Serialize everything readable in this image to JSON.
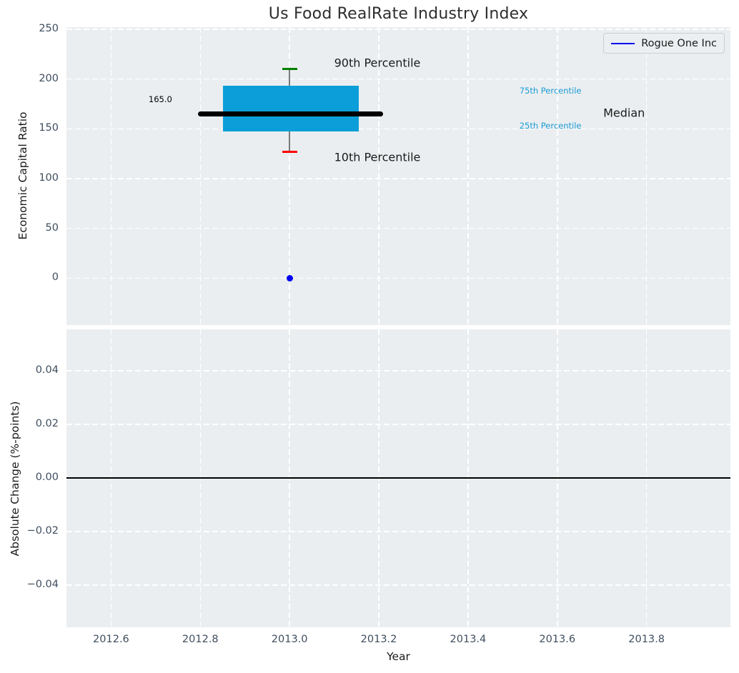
{
  "title": "Us Food RealRate Industry Index",
  "xlabel": "Year",
  "legend": {
    "label": "Rogue One Inc",
    "line_color": "#0000ee",
    "location": "upper right"
  },
  "colors": {
    "plot_background": "#ebeef0",
    "grid": "#ffffff",
    "box_fill": "#0b9ed9",
    "median_line": "#000000",
    "p90_cap": "#008000",
    "p10_cap": "#ff0000",
    "whisker": "#7a7a7a",
    "point": "#0000ee",
    "tick_label": "#3f4e5f",
    "percentile_label": "#1b9cd4",
    "zero_line": "#000000"
  },
  "xticks": {
    "values": [
      2012.6,
      2012.8,
      2013.0,
      2013.2,
      2013.4,
      2013.6,
      2013.8
    ],
    "labels": [
      "2012.6",
      "2012.8",
      "2013.0",
      "2013.2",
      "2013.4",
      "2013.6",
      "2013.8"
    ]
  },
  "chart_data": [
    {
      "type": "boxplot",
      "title": "Us Food RealRate Industry Index",
      "ylabel": "Economic Capital Ratio",
      "xlim": [
        2012.5,
        2013.988
      ],
      "ylim": [
        -47,
        252
      ],
      "grid": true,
      "yticks": {
        "values": [
          0,
          50,
          100,
          150,
          200,
          250
        ],
        "labels": [
          "0",
          "50",
          "100",
          "150",
          "200",
          "250"
        ]
      },
      "box": {
        "x_center": 2013.0,
        "x_left": 2012.85,
        "x_right": 2013.155,
        "median": 165.0,
        "p75": 193,
        "p25": 147,
        "p90": 210,
        "p10": 127,
        "median_x_left": 2012.795,
        "median_x_right": 2013.21,
        "cap_half_width": 0.017
      },
      "series": [
        {
          "name": "Rogue One Inc",
          "points": [
            {
              "x": 2013.0,
              "y": 0
            }
          ]
        }
      ],
      "annotations": [
        {
          "text": "165.0",
          "x": 2012.684,
          "y": 179.5,
          "color": "#000000",
          "size": 11.5
        },
        {
          "text": "90th Percentile",
          "x": 2013.1,
          "y": 216.5,
          "color": "#1a1a1a",
          "size": 16
        },
        {
          "text": "10th Percentile",
          "x": 2013.1,
          "y": 121.8,
          "color": "#1a1a1a",
          "size": 16
        },
        {
          "text": "75th Percentile",
          "x": 2013.515,
          "y": 188.0,
          "color": "#1b9cd4",
          "size": 11.5
        },
        {
          "text": "25th Percentile",
          "x": 2013.515,
          "y": 153.0,
          "color": "#1b9cd4",
          "size": 11.5
        },
        {
          "text": "Median",
          "x": 2013.703,
          "y": 166.0,
          "color": "#1a1a1a",
          "size": 16
        }
      ]
    },
    {
      "type": "line",
      "ylabel": "Absolute Change (%-points)",
      "xlim": [
        2012.5,
        2013.988
      ],
      "ylim": [
        -0.0557,
        0.0555
      ],
      "grid": true,
      "yticks": {
        "values": [
          0.04,
          0.02,
          0.0,
          -0.02,
          -0.04
        ],
        "labels": [
          "0.04",
          "0.02",
          "0.00",
          "−0.02",
          "−0.04"
        ]
      },
      "zero_line": 0.0
    }
  ]
}
